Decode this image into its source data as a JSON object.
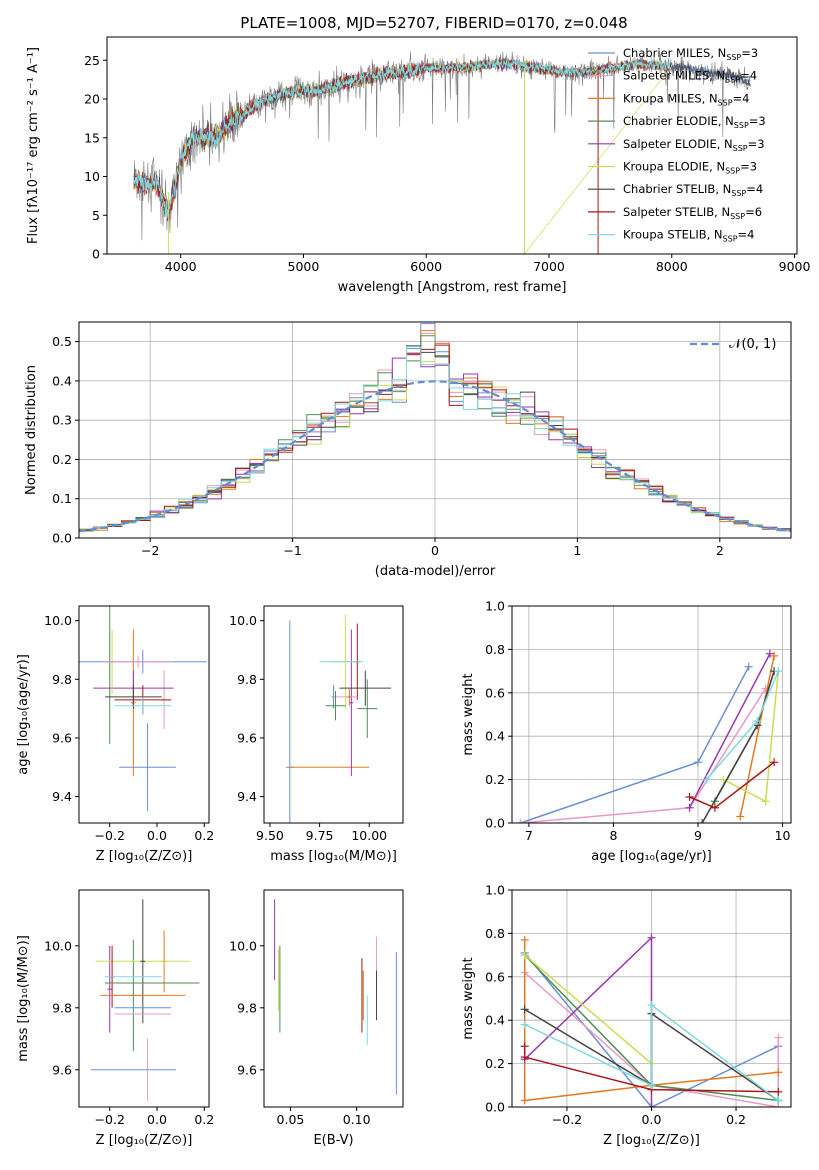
{
  "figure_title": "PLATE=1008, MJD=52707, FIBERID=0170, z=0.048",
  "colors": [
    "#6a8fd6",
    "#e899c8",
    "#e5781e",
    "#4f8d55",
    "#9a36b0",
    "#c9dd52",
    "#444444",
    "#a81818",
    "#7fd9de"
  ],
  "chart_data": [
    {
      "id": "spectrum",
      "type": "line",
      "xlabel": "wavelength [Angstrom, rest frame]",
      "ylabel": "Flux [fλ10⁻¹⁷ erg cm⁻² s⁻¹ A⁻¹]",
      "xlim": [
        3400,
        9020
      ],
      "ylim": [
        0,
        28
      ],
      "xticks": [
        "4000",
        "5000",
        "6000",
        "7000",
        "8000",
        "9000"
      ],
      "yticks": [
        "0",
        "5",
        "10",
        "15",
        "20",
        "25"
      ],
      "grid": false,
      "legend_position": "right",
      "continuum": [
        [
          3620,
          9.5
        ],
        [
          3700,
          9
        ],
        [
          3800,
          9.5
        ],
        [
          3900,
          5
        ],
        [
          4000,
          12
        ],
        [
          4100,
          15
        ],
        [
          4200,
          15
        ],
        [
          4300,
          15
        ],
        [
          4400,
          17
        ],
        [
          4500,
          18
        ],
        [
          4700,
          20
        ],
        [
          4900,
          21
        ],
        [
          5100,
          21
        ],
        [
          5300,
          22
        ],
        [
          5600,
          23
        ],
        [
          6000,
          24
        ],
        [
          6300,
          24
        ],
        [
          6500,
          24.5
        ],
        [
          6700,
          24.5
        ],
        [
          6900,
          24
        ],
        [
          7100,
          23.5
        ],
        [
          7300,
          23.5
        ],
        [
          7700,
          24.5
        ],
        [
          8100,
          24
        ],
        [
          8500,
          23
        ],
        [
          8640,
          22
        ]
      ],
      "series": [
        {
          "name": "Chabrier MILES, N",
          "ssp": "=3"
        },
        {
          "name": "Salpeter MILES, N",
          "ssp": "=4"
        },
        {
          "name": "Kroupa MILES, N",
          "ssp": "=4"
        },
        {
          "name": "Chabrier ELODIE, N",
          "ssp": "=3"
        },
        {
          "name": "Salpeter ELODIE, N",
          "ssp": "=3"
        },
        {
          "name": "Kroupa ELODIE, N",
          "ssp": "=3"
        },
        {
          "name": "Chabrier STELIB, N",
          "ssp": "=4"
        },
        {
          "name": "Salpeter STELIB, N",
          "ssp": "=6"
        },
        {
          "name": "Kroupa STELIB, N",
          "ssp": "=4"
        }
      ],
      "ssp_subscript": "SSP"
    },
    {
      "id": "residuals",
      "type": "histogram",
      "xlabel": "(data-model)/error",
      "ylabel": "Normed distribution",
      "xlim": [
        -2.5,
        2.5
      ],
      "ylim": [
        0,
        0.55
      ],
      "xticks": [
        "−2",
        "−1",
        "0",
        "1",
        "2"
      ],
      "yticks": [
        "0.0",
        "0.1",
        "0.2",
        "0.3",
        "0.4",
        "0.5"
      ],
      "grid": true,
      "legend_label": "𝒩(0, 1)",
      "legend_position": "top-right",
      "bin_width": 0.1,
      "gaussian": {
        "mean": 0,
        "sigma": 1
      }
    },
    {
      "id": "age-vs-Z",
      "type": "errorbar",
      "xlabel": "Z [log₁₀(Z/Z⊙)]",
      "ylabel": "age  [log₁₀(age/yr)]",
      "xlim": [
        -0.33,
        0.22
      ],
      "ylim": [
        9.31,
        10.05
      ],
      "xticks": [
        "−0.2",
        "0.0",
        "0.2"
      ],
      "yticks": [
        "9.4",
        "9.6",
        "9.8",
        "10.0"
      ],
      "points": [
        {
          "x": -0.04,
          "xe": 0.12,
          "y": 9.5,
          "ye": 0.15
        },
        {
          "x": 0.03,
          "xe": 0.01,
          "y": 9.73,
          "ye": 0.1
        },
        {
          "x": -0.1,
          "xe": 0.01,
          "y": 9.72,
          "ye": 0.25
        },
        {
          "x": -0.2,
          "xe": 0.01,
          "y": 9.86,
          "ye": 0.28
        },
        {
          "x": -0.1,
          "xe": 0.17,
          "y": 9.77,
          "ye": 0.06
        },
        {
          "x": -0.19,
          "xe": 0.01,
          "y": 9.86,
          "ye": 0.11
        },
        {
          "x": -0.1,
          "xe": 0.12,
          "y": 9.74,
          "ye": 0.04
        },
        {
          "x": -0.06,
          "xe": 0.12,
          "y": 9.73,
          "ye": 0.05
        },
        {
          "x": -0.06,
          "xe": 0.12,
          "y": 9.71,
          "ye": 0.03
        },
        {
          "x": -0.06,
          "xe": 0.27,
          "y": 9.86,
          "ye": 0.04
        },
        {
          "x": -0.08,
          "xe": 0.15,
          "y": 9.86,
          "ye": 0.02
        }
      ]
    },
    {
      "id": "age-vs-mass",
      "type": "errorbar",
      "xlabel": "mass [log₁₀(M/M⊙)]",
      "ylabel": "",
      "xlim": [
        9.47,
        10.17
      ],
      "ylim": [
        9.31,
        10.05
      ],
      "xticks": [
        "9.50",
        "9.75",
        "10.00"
      ],
      "yticks": [
        "9.4",
        "9.6",
        "9.8",
        "10.0"
      ],
      "points": [
        {
          "x": 9.6,
          "xe": 0.02,
          "y": 9.5,
          "ye": 0.5
        },
        {
          "x": 9.6,
          "xe": 0.0,
          "y": 9.5,
          "ye": 0.0
        },
        {
          "x": 9.8,
          "xe": 0.2,
          "y": 9.5,
          "ye": 0.0
        },
        {
          "x": 9.99,
          "xe": 0.05,
          "y": 9.7,
          "ye": 0.1
        },
        {
          "x": 9.91,
          "xe": 0.01,
          "y": 9.72,
          "ye": 0.25
        },
        {
          "x": 9.88,
          "xe": 0.07,
          "y": 9.86,
          "ye": 0.16
        },
        {
          "x": 9.98,
          "xe": 0.13,
          "y": 9.77,
          "ye": 0.06
        },
        {
          "x": 9.94,
          "xe": 0.01,
          "y": 9.86,
          "ye": 0.13
        },
        {
          "x": 9.86,
          "xe": 0.11,
          "y": 9.86,
          "ye": 0.0
        },
        {
          "x": 9.82,
          "xe": 0.01,
          "y": 9.74,
          "ye": 0.04
        },
        {
          "x": 9.88,
          "xe": 0.06,
          "y": 9.74,
          "ye": 0.0
        },
        {
          "x": 9.9,
          "xe": 0.01,
          "y": 9.74,
          "ye": 0.03
        },
        {
          "x": 9.83,
          "xe": 0.05,
          "y": 9.71,
          "ye": 0.05
        }
      ]
    },
    {
      "id": "weight-vs-age",
      "type": "line",
      "xlabel": "age  [log₁₀(age/yr)]",
      "ylabel": "mass weight",
      "xlim": [
        6.8,
        10.1
      ],
      "ylim": [
        0,
        1
      ],
      "xticks": [
        "7",
        "8",
        "9",
        "10"
      ],
      "yticks": [
        "0.0",
        "0.2",
        "0.4",
        "0.6",
        "0.8",
        "1.0"
      ],
      "grid": true,
      "lines": [
        [
          [
            6.9,
            0
          ],
          [
            9.0,
            0.28
          ],
          [
            9.6,
            0.72
          ]
        ],
        [
          [
            6.9,
            0
          ],
          [
            8.9,
            0.07
          ],
          [
            9.8,
            0.62
          ]
        ],
        [
          [
            9.5,
            0.03
          ],
          [
            9.9,
            0.77
          ]
        ],
        [
          [
            9.2,
            0.1
          ],
          [
            9.7,
            0.45
          ],
          [
            9.9,
            0.7
          ]
        ],
        [
          [
            8.9,
            0.07
          ],
          [
            9.85,
            0.78
          ]
        ],
        [
          [
            9.3,
            0.2
          ],
          [
            9.8,
            0.1
          ],
          [
            9.95,
            0.7
          ]
        ],
        [
          [
            9.05,
            0.0
          ],
          [
            9.7,
            0.45
          ],
          [
            9.9,
            0.7
          ]
        ],
        [
          [
            8.9,
            0.12
          ],
          [
            9.2,
            0.07
          ],
          [
            9.9,
            0.28
          ]
        ],
        [
          [
            9.1,
            0.2
          ],
          [
            9.7,
            0.47
          ],
          [
            9.95,
            0.7
          ]
        ]
      ]
    },
    {
      "id": "mass-vs-Z",
      "type": "errorbar",
      "xlabel": "Z [log₁₀(Z/Z⊙)]",
      "ylabel": "mass [log₁₀(M/M⊙)]",
      "xlim": [
        -0.33,
        0.22
      ],
      "ylim": [
        9.48,
        10.18
      ],
      "xticks": [
        "−0.2",
        "0.0",
        "0.2"
      ],
      "yticks": [
        "9.6",
        "9.8",
        "10.0"
      ],
      "points": [
        {
          "x": -0.1,
          "xe": 0.18,
          "y": 9.6,
          "ye": 0.0
        },
        {
          "x": -0.04,
          "xe": 0.0,
          "y": 9.6,
          "ye": 0.1
        },
        {
          "x": 0.03,
          "xe": 0.01,
          "y": 9.95,
          "ye": 0.1
        },
        {
          "x": -0.1,
          "xe": 0.01,
          "y": 9.84,
          "ye": 0.18
        },
        {
          "x": -0.2,
          "xe": 0.01,
          "y": 9.86,
          "ye": 0.14
        },
        {
          "x": -0.06,
          "xe": 0.2,
          "y": 9.95,
          "ye": 0.0
        },
        {
          "x": -0.06,
          "xe": 0.01,
          "y": 9.95,
          "ye": 0.2
        },
        {
          "x": -0.19,
          "xe": 0.01,
          "y": 9.9,
          "ye": 0.1
        },
        {
          "x": -0.1,
          "xe": 0.12,
          "y": 9.9,
          "ye": 0.0
        },
        {
          "x": -0.06,
          "xe": 0.12,
          "y": 9.8,
          "ye": 0.0
        },
        {
          "x": -0.06,
          "xe": 0.12,
          "y": 9.78,
          "ye": 0.0
        },
        {
          "x": -0.06,
          "xe": 0.18,
          "y": 9.84,
          "ye": 0.0
        },
        {
          "x": -0.02,
          "xe": 0.2,
          "y": 9.88,
          "ye": 0.0
        }
      ]
    },
    {
      "id": "mass-vs-ebv",
      "type": "errorbar",
      "xlabel": "E(B-V)",
      "ylabel": "",
      "xlim": [
        0.03,
        0.135
      ],
      "ylim": [
        9.48,
        10.18
      ],
      "xticks": [
        "0.05",
        "0.10"
      ],
      "yticks": [
        "9.6",
        "9.8",
        "10.0"
      ],
      "points": [
        {
          "x": 0.13,
          "xe": 0,
          "y": 9.75,
          "ye": 0.23
        },
        {
          "x": 0.115,
          "xe": 0,
          "y": 9.95,
          "ye": 0.08
        },
        {
          "x": 0.105,
          "xe": 0,
          "y": 9.84,
          "ye": 0.08
        },
        {
          "x": 0.042,
          "xe": 0,
          "y": 9.86,
          "ye": 0.14
        },
        {
          "x": 0.038,
          "xe": 0,
          "y": 10.02,
          "ye": 0.13
        },
        {
          "x": 0.041,
          "xe": 0,
          "y": 9.89,
          "ye": 0.1
        },
        {
          "x": 0.115,
          "xe": 0,
          "y": 9.84,
          "ye": 0.08
        },
        {
          "x": 0.104,
          "xe": 0,
          "y": 9.84,
          "ye": 0.12
        },
        {
          "x": 0.108,
          "xe": 0,
          "y": 9.76,
          "ye": 0.08
        }
      ]
    },
    {
      "id": "weight-vs-Z",
      "type": "line",
      "xlabel": "Z [log₁₀(Z/Z⊙)]",
      "ylabel": "mass weight",
      "xlim": [
        -0.33,
        0.33
      ],
      "ylim": [
        0,
        1
      ],
      "xticks": [
        "−0.2",
        "0.0",
        "0.2"
      ],
      "yticks": [
        "0.0",
        "0.2",
        "0.4",
        "0.6",
        "0.8",
        "1.0"
      ],
      "grid": true,
      "lines": [
        [
          [
            -0.3,
            0.71
          ],
          [
            0,
            0.0
          ],
          [
            0.3,
            0.28
          ]
        ],
        [
          [
            -0.3,
            0.62
          ],
          [
            0,
            0.1
          ],
          [
            0.3,
            0.0
          ],
          [
            0.3,
            0.32
          ]
        ],
        [
          [
            -0.3,
            0.77
          ],
          [
            -0.3,
            0.03
          ],
          [
            0,
            0.1
          ],
          [
            0.3,
            0.16
          ]
        ],
        [
          [
            -0.3,
            0.7
          ],
          [
            0,
            0.1
          ],
          [
            0.3,
            0.03
          ]
        ],
        [
          [
            -0.3,
            0.22
          ],
          [
            0,
            0.78
          ],
          [
            0,
            0.0
          ]
        ],
        [
          [
            -0.3,
            0.7
          ],
          [
            0,
            0.2
          ]
        ],
        [
          [
            -0.3,
            0.45
          ],
          [
            0,
            0.1
          ],
          [
            0,
            0.43
          ],
          [
            0.3,
            0.03
          ]
        ],
        [
          [
            -0.3,
            0.28
          ],
          [
            -0.3,
            0.23
          ],
          [
            0,
            0.08
          ],
          [
            0.3,
            0.07
          ]
        ],
        [
          [
            -0.3,
            0.38
          ],
          [
            0,
            0.1
          ],
          [
            0,
            0.47
          ],
          [
            0.3,
            0.03
          ]
        ]
      ]
    }
  ]
}
